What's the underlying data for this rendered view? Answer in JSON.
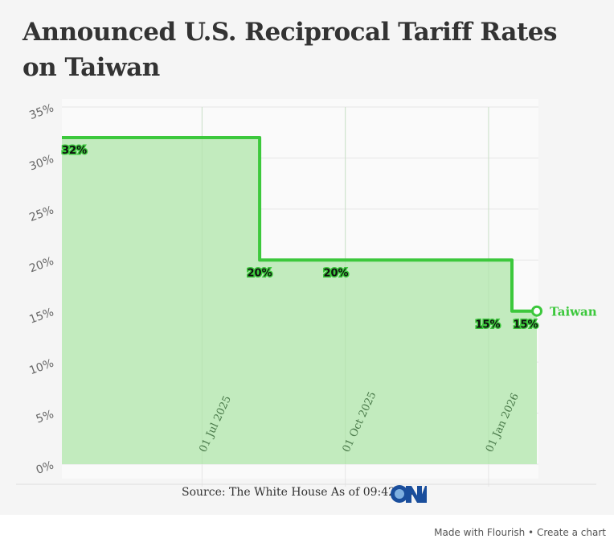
{
  "title": "Announced U.S. Reciprocal Tariff Rates on Taiwan",
  "source": "Source: The White House As of 09:42:10",
  "logo_text": "CNA",
  "footer": {
    "made_with": "Made with Flourish",
    "separator": " • ",
    "create": "Create a chart"
  },
  "chart_data": {
    "type": "area",
    "interpolation": "step-after",
    "title": "Announced U.S. Reciprocal Tariff Rates on Taiwan",
    "xlabel": "",
    "ylabel": "",
    "ylim": [
      0,
      35
    ],
    "yticks": [
      "0%",
      "5%",
      "10%",
      "15%",
      "20%",
      "25%",
      "30%",
      "35%"
    ],
    "ytick_values": [
      0,
      5,
      10,
      15,
      20,
      25,
      30,
      35
    ],
    "xticks": [
      {
        "date": "2025-07-01",
        "label": "01 Jul 2025"
      },
      {
        "date": "2025-10-01",
        "label": "01 Oct 2025"
      },
      {
        "date": "2026-01-01",
        "label": "01 Jan 2026"
      }
    ],
    "xlim": [
      "2025-04-02",
      "2026-02-01"
    ],
    "grid": true,
    "series": [
      {
        "name": "Taiwan",
        "color": "#3cc83c",
        "fill": "#c2ebbe",
        "points": [
          {
            "date": "2025-04-02",
            "value": 32,
            "label": "32%"
          },
          {
            "date": "2025-08-07",
            "value": 20,
            "label": "20%"
          },
          {
            "date": "2025-09-25",
            "value": 20,
            "label": "20%"
          },
          {
            "date": "2026-01-16",
            "value": 15,
            "label": "15%"
          },
          {
            "date": "2026-02-01",
            "value": 15,
            "label": "15%"
          }
        ]
      }
    ]
  }
}
